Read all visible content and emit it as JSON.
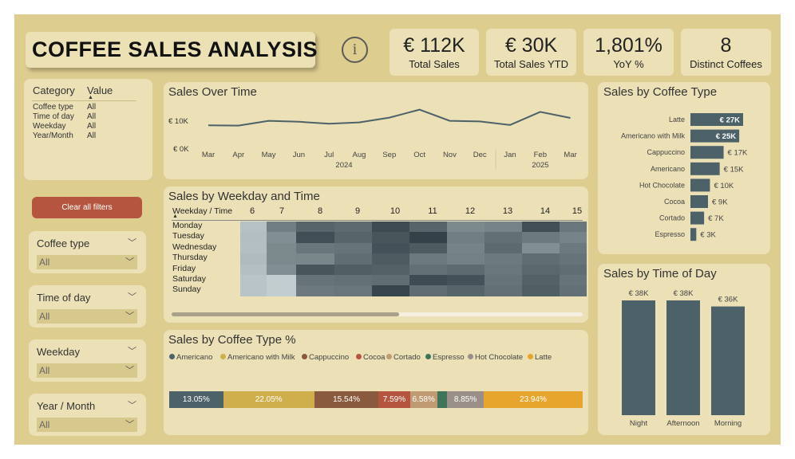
{
  "header": {
    "title": "COFFEE SALES ANALYSIS",
    "info_icon": "info-icon"
  },
  "kpis": [
    {
      "value": "€ 112K",
      "label": "Total Sales"
    },
    {
      "value": "€ 30K",
      "label": "Total Sales YTD"
    },
    {
      "value": "1,801%",
      "label": "YoY %"
    },
    {
      "value": "8",
      "label": "Distinct Coffees"
    }
  ],
  "filter_summary": {
    "col_category": "Category",
    "col_value": "Value",
    "rows": [
      {
        "category": "Coffee type",
        "value": "All"
      },
      {
        "category": "Time of day",
        "value": "All"
      },
      {
        "category": "Weekday",
        "value": "All"
      },
      {
        "category": "Year/Month",
        "value": "All"
      }
    ]
  },
  "clear_filters_label": "Clear all filters",
  "slicers": [
    {
      "label": "Coffee type",
      "value": "All"
    },
    {
      "label": "Time of day",
      "value": "All"
    },
    {
      "label": "Weekday",
      "value": "All"
    },
    {
      "label": "Year / Month",
      "value": "All"
    }
  ],
  "sales_over_time": {
    "title": "Sales Over Time",
    "y_ticks": [
      "€ 10K",
      "€ 0K"
    ],
    "year_labels": [
      "2024",
      "2025"
    ],
    "chart_data": {
      "type": "line",
      "categories": [
        "Mar",
        "Apr",
        "May",
        "Jun",
        "Jul",
        "Aug",
        "Sep",
        "Oct",
        "Nov",
        "Dec",
        "Jan",
        "Feb",
        "Mar"
      ],
      "values": [
        7.2,
        7.1,
        8.6,
        8.3,
        7.7,
        8.1,
        9.6,
        12.1,
        8.6,
        8.4,
        7.3,
        11.4,
        9.5
      ],
      "ylim": [
        0,
        14
      ],
      "color": "#4d6169"
    }
  },
  "heatmap": {
    "title": "Sales by Weekday and Time",
    "corner_label": "Weekday / Time",
    "chart_data": {
      "type": "heatmap",
      "hours": [
        "6",
        "7",
        "8",
        "9",
        "10",
        "11",
        "12",
        "13",
        "14",
        "15"
      ],
      "days": [
        "Monday",
        "Tuesday",
        "Wednesday",
        "Thursday",
        "Friday",
        "Saturday",
        "Sunday"
      ],
      "values": [
        [
          0.12,
          0.55,
          0.72,
          0.68,
          0.88,
          0.72,
          0.48,
          0.52,
          0.86,
          0.6
        ],
        [
          0.14,
          0.45,
          0.86,
          0.72,
          0.82,
          0.95,
          0.55,
          0.65,
          0.58,
          0.52
        ],
        [
          0.13,
          0.48,
          0.6,
          0.62,
          0.84,
          0.78,
          0.52,
          0.68,
          0.45,
          0.58
        ],
        [
          0.16,
          0.48,
          0.5,
          0.66,
          0.78,
          0.58,
          0.54,
          0.58,
          0.66,
          0.62
        ],
        [
          0.13,
          0.45,
          0.82,
          0.76,
          0.74,
          0.64,
          0.68,
          0.6,
          0.7,
          0.66
        ],
        [
          0.1,
          0.04,
          0.62,
          0.64,
          0.66,
          0.88,
          0.84,
          0.62,
          0.74,
          0.62
        ],
        [
          0.1,
          0.04,
          0.58,
          0.6,
          0.92,
          0.66,
          0.72,
          0.64,
          0.76,
          0.64
        ]
      ],
      "color_low": "#c8d3d6",
      "color_high": "#2a3a40"
    }
  },
  "coffee_share": {
    "title": "Sales by Coffee Type %",
    "chart_data": {
      "type": "bar",
      "stacked": "100%",
      "series": [
        {
          "name": "Americano",
          "value": 13.05,
          "label": "13.05%",
          "color": "#4d6169"
        },
        {
          "name": "Americano with Milk",
          "value": 22.05,
          "label": "22.05%",
          "color": "#cfae4c"
        },
        {
          "name": "Cappuccino",
          "value": 15.54,
          "label": "15.54%",
          "color": "#8a5a3e"
        },
        {
          "name": "Cocoa",
          "value": 7.59,
          "label": "7.59%",
          "color": "#b5553f"
        },
        {
          "name": "Cortado",
          "value": 6.58,
          "label": "6.58%",
          "color": "#c09a73"
        },
        {
          "name": "Espresso",
          "value": 2.4,
          "label": "",
          "color": "#3e7558"
        },
        {
          "name": "Hot Chocolate",
          "value": 8.85,
          "label": "8.85%",
          "color": "#9a8f88"
        },
        {
          "name": "Latte",
          "value": 23.94,
          "label": "23.94%",
          "color": "#e8a52e"
        }
      ]
    }
  },
  "coffee_type": {
    "title": "Sales by Coffee Type",
    "chart_data": {
      "type": "bar",
      "orientation": "horizontal",
      "categories": [
        "Latte",
        "Americano with Milk",
        "Cappuccino",
        "Americano",
        "Hot Chocolate",
        "Cocoa",
        "Cortado",
        "Espresso"
      ],
      "values": [
        27,
        25,
        17,
        15,
        10,
        9,
        7,
        3
      ],
      "labels": [
        "€ 27K",
        "€ 25K",
        "€ 17K",
        "€ 15K",
        "€ 10K",
        "€ 9K",
        "€ 7K",
        "€ 3K"
      ],
      "xlim": [
        0,
        27
      ],
      "color": "#4d6169"
    }
  },
  "time_of_day": {
    "title": "Sales by Time of Day",
    "chart_data": {
      "type": "bar",
      "categories": [
        "Night",
        "Afternoon",
        "Morning"
      ],
      "values": [
        38,
        38,
        36
      ],
      "labels": [
        "€ 38K",
        "€ 38K",
        "€ 36K"
      ],
      "ylim": [
        0,
        38
      ],
      "color": "#4d6169"
    }
  }
}
